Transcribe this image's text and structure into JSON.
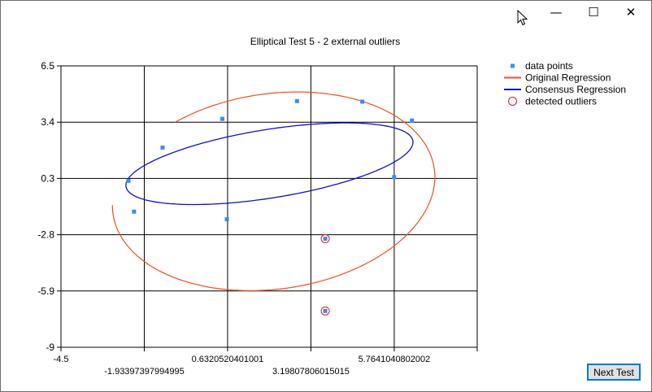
{
  "window": {
    "minimize_icon": "minimize-icon",
    "maximize_icon": "maximize-icon",
    "close_icon": "close-icon",
    "minimize_glyph": "—",
    "maximize_glyph": "☐",
    "close_glyph": "✕"
  },
  "buttons": {
    "next_test": "Next Test"
  },
  "chart_data": {
    "type": "scatter",
    "title": "Elliptical Test 5 - 2 external outliers",
    "xlabel": "",
    "ylabel": "",
    "xlim": [
      -4.5,
      8.32
    ],
    "ylim": [
      -9,
      6.5
    ],
    "grid": true,
    "legend_position": "top-right",
    "x_ticks": [
      {
        "value": -4.5,
        "label": "-4.5",
        "row": 0
      },
      {
        "value": -1.93397397994995,
        "label": "-1.93397397994995",
        "row": 1
      },
      {
        "value": 0.6320520401001,
        "label": "0.6320520401001",
        "row": 0
      },
      {
        "value": 3.19807806015015,
        "label": "3.19807806015015",
        "row": 1
      },
      {
        "value": 5.7641040802002,
        "label": "5.7641040802002",
        "row": 0
      }
    ],
    "x_extra_gridline": 8.32,
    "y_ticks": [
      {
        "value": 6.5,
        "label": "6.5"
      },
      {
        "value": 3.4,
        "label": "3.4"
      },
      {
        "value": 0.3,
        "label": "0.3"
      },
      {
        "value": -2.8,
        "label": "-2.8"
      },
      {
        "value": -5.9,
        "label": "-5.9"
      },
      {
        "value": -9,
        "label": "-9"
      }
    ],
    "colors": {
      "data_points": "#3c8cf0",
      "original_regression": "#f0501e",
      "consensus_regression": "#0a14c8",
      "outliers": "#e6141e",
      "grid": "#000000"
    },
    "legend": [
      {
        "label": "data points",
        "key": "data_points"
      },
      {
        "label": "Original Regression",
        "key": "original_regression"
      },
      {
        "label": "Consensus Regression",
        "key": "consensus_regression"
      },
      {
        "label": "detected outliers",
        "key": "outliers"
      }
    ],
    "data_points": [
      {
        "x": -2.42,
        "y": 0.17
      },
      {
        "x": -2.25,
        "y": -1.53
      },
      {
        "x": -1.37,
        "y": 2.0
      },
      {
        "x": 0.47,
        "y": 3.58
      },
      {
        "x": 0.61,
        "y": -1.95
      },
      {
        "x": 2.77,
        "y": 4.56
      },
      {
        "x": 3.64,
        "y": -3.02
      },
      {
        "x": 3.64,
        "y": -7.0
      },
      {
        "x": 4.78,
        "y": 4.53
      },
      {
        "x": 5.76,
        "y": 0.37
      },
      {
        "x": 6.31,
        "y": 3.49
      }
    ],
    "detected_outliers": [
      {
        "x": 3.64,
        "y": -3.02
      },
      {
        "x": 3.64,
        "y": -7.0
      }
    ],
    "original_regression": {
      "shape": "ellipse",
      "center": {
        "x": 2.05,
        "y": -0.41
      },
      "semi_axes": [
        4.75,
        5.66
      ],
      "rotation_deg": -28,
      "arc_start_deg": 212,
      "arc_end_deg": 520
    },
    "consensus_regression": {
      "shape": "ellipse",
      "center": {
        "x": 1.92,
        "y": 1.11
      },
      "semi_axes": [
        4.61,
        1.83
      ],
      "rotation_deg": 18,
      "arc_start_deg": 0,
      "arc_end_deg": 360
    }
  }
}
